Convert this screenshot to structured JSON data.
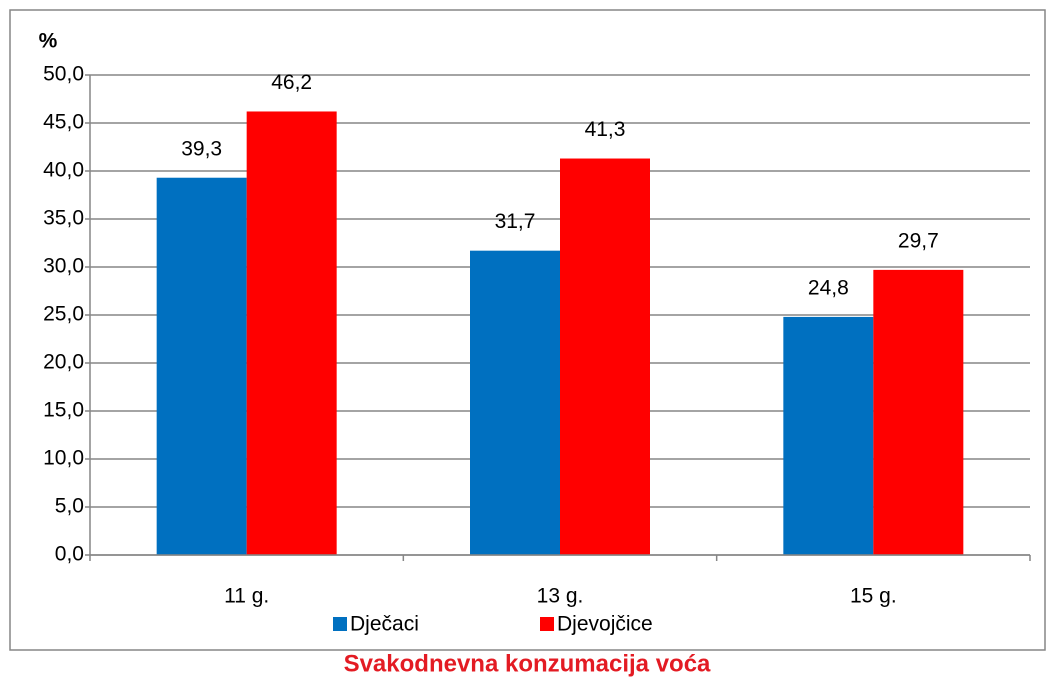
{
  "chart_data": {
    "type": "bar",
    "title": "Svakodnevna konzumacija voća",
    "y_label": "%",
    "categories": [
      "11 g.",
      "13 g.",
      "15 g."
    ],
    "series": [
      {
        "name": "Dječaci",
        "color": "#0070c0",
        "values": [
          39.3,
          31.7,
          24.8
        ],
        "value_labels": [
          "39,3",
          "31,7",
          "24,8"
        ]
      },
      {
        "name": "Djevojčice",
        "color": "#ff0000",
        "values": [
          46.2,
          41.3,
          29.7
        ],
        "value_labels": [
          "46,2",
          "41,3",
          "29,7"
        ]
      }
    ],
    "ylim": [
      0,
      50
    ],
    "yticks": [
      {
        "value": 0,
        "label": "0,0"
      },
      {
        "value": 5,
        "label": "5,0"
      },
      {
        "value": 10,
        "label": "10,0"
      },
      {
        "value": 15,
        "label": "15,0"
      },
      {
        "value": 20,
        "label": "20,0"
      },
      {
        "value": 25,
        "label": "25,0"
      },
      {
        "value": 30,
        "label": "30,0"
      },
      {
        "value": 35,
        "label": "35,0"
      },
      {
        "value": 40,
        "label": "40,0"
      },
      {
        "value": 45,
        "label": "45,0"
      },
      {
        "value": 50,
        "label": "50,0"
      }
    ],
    "grid": true,
    "legend": "bottom"
  }
}
